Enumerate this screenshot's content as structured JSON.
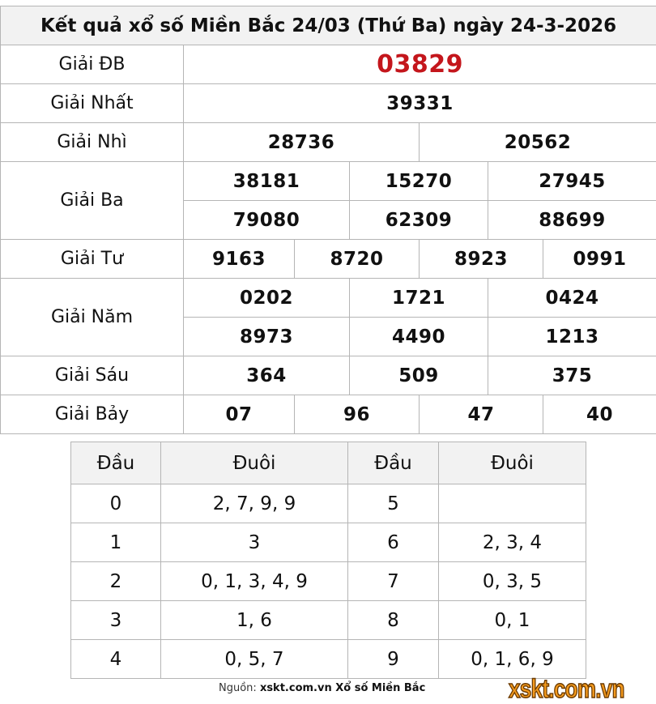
{
  "title": "Kết quả xổ số Miền Bắc 24/03 (Thứ Ba) ngày 24-3-2026",
  "prizes": {
    "db": {
      "label": "Giải ĐB",
      "values": [
        "03829"
      ]
    },
    "nhat": {
      "label": "Giải Nhất",
      "values": [
        "39331"
      ]
    },
    "nhi": {
      "label": "Giải Nhì",
      "values": [
        "28736",
        "20562"
      ]
    },
    "ba": {
      "label": "Giải Ba",
      "values": [
        "38181",
        "15270",
        "27945",
        "79080",
        "62309",
        "88699"
      ]
    },
    "tu": {
      "label": "Giải Tư",
      "values": [
        "9163",
        "8720",
        "8923",
        "0991"
      ]
    },
    "nam": {
      "label": "Giải Năm",
      "values": [
        "0202",
        "1721",
        "0424",
        "8973",
        "4490",
        "1213"
      ]
    },
    "sau": {
      "label": "Giải Sáu",
      "values": [
        "364",
        "509",
        "375"
      ]
    },
    "bay": {
      "label": "Giải Bảy",
      "values": [
        "07",
        "96",
        "47",
        "40"
      ]
    }
  },
  "loto": {
    "headers": [
      "Đầu",
      "Đuôi",
      "Đầu",
      "Đuôi"
    ],
    "rows": [
      [
        "0",
        "2, 7, 9, 9",
        "5",
        ""
      ],
      [
        "1",
        "3",
        "6",
        "2, 3, 4"
      ],
      [
        "2",
        "0, 1, 3, 4, 9",
        "7",
        "0, 3, 5"
      ],
      [
        "3",
        "1, 6",
        "8",
        "0, 1"
      ],
      [
        "4",
        "0, 5, 7",
        "9",
        "0, 1, 6, 9"
      ]
    ]
  },
  "source": {
    "prefix": "Nguồn:",
    "site": "xskt.com.vn Xổ số Miền Bắc"
  },
  "logo": "xskt.com.vn",
  "colors": {
    "special_prize": "#c4161c",
    "logo": "#f39a1e",
    "header_bg": "#f2f2f2"
  }
}
